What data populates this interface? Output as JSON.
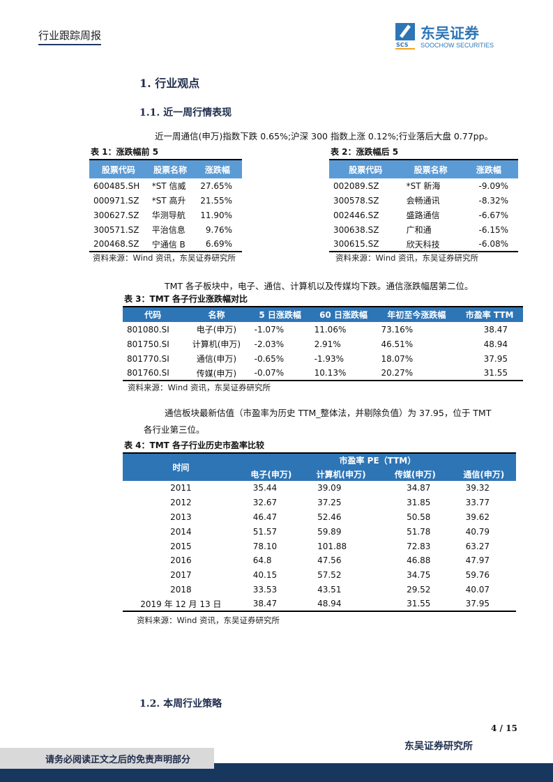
{
  "header": {
    "report_type": "行业跟踪周报",
    "logo": {
      "cn": "东吴证券",
      "en": "SOOCHOW SECURITIES",
      "mark": "SCS"
    }
  },
  "sections": {
    "s1": "1.   行业观点",
    "s11": "1.1.   近一周行情表现",
    "s12": "1.2.   本周行业策略"
  },
  "para1": "近一周通信(申万)指数下跌 0.65%;沪深 300 指数上涨 0.12%;行业落后大盘 0.77pp。",
  "para2": "TMT 各子板块中，电子、通信、计算机以及传媒均下跌。通信涨跌幅居第二位。",
  "para3a": "通信板块最新估值（市盈率为历史 TTM_整体法，并剔除负值）为 37.95，位于 TMT",
  "para3b": "各行业第三位。",
  "source": "资料来源：Wind 资讯，东吴证券研究所",
  "table1": {
    "caption": "表 1：涨跌幅前 5",
    "headers": [
      "股票代码",
      "股票名称",
      "涨跌幅"
    ],
    "rows": [
      [
        "600485.SH",
        "*ST 信威",
        "27.65%"
      ],
      [
        "000971.SZ",
        "*ST 高升",
        "21.55%"
      ],
      [
        "300627.SZ",
        "华测导航",
        "11.90%"
      ],
      [
        "300571.SZ",
        "平治信息",
        "9.76%"
      ],
      [
        "200468.SZ",
        "宁通信 B",
        "6.69%"
      ]
    ]
  },
  "table2": {
    "caption": "表 2：涨跌幅后 5",
    "headers": [
      "股票代码",
      "股票名称",
      "涨跌幅"
    ],
    "rows": [
      [
        "002089.SZ",
        "*ST 新海",
        "-9.09%"
      ],
      [
        "300578.SZ",
        "会畅通讯",
        "-8.32%"
      ],
      [
        "002446.SZ",
        "盛路通信",
        "-6.67%"
      ],
      [
        "300638.SZ",
        "广和通",
        "-6.15%"
      ],
      [
        "300615.SZ",
        "欣天科技",
        "-6.08%"
      ]
    ]
  },
  "table3": {
    "caption": "表 3：TMT 各子行业涨跌幅对比",
    "headers": [
      "代码",
      "名称",
      "5 日涨跌幅",
      "60 日涨跌幅",
      "年初至今涨跌幅",
      "市盈率 TTM"
    ],
    "rows": [
      [
        "801080.SI",
        "电子(申万)",
        "-1.07%",
        "11.06%",
        "73.16%",
        "38.47"
      ],
      [
        "801750.SI",
        "计算机(申万)",
        "-2.03%",
        "2.91%",
        "46.51%",
        "48.94"
      ],
      [
        "801770.SI",
        "通信(申万)",
        "-0.65%",
        "-1.93%",
        "18.07%",
        "37.95"
      ],
      [
        "801760.SI",
        "传媒(申万)",
        "-0.07%",
        "10.13%",
        "20.27%",
        "31.55"
      ]
    ]
  },
  "table4": {
    "caption": "表 4：TMT 各子行业历史市盈率比较",
    "time_header": "时间",
    "group_header": "市盈率 PE（TTM）",
    "headers": [
      "电子(申万)",
      "计算机(申万)",
      "传媒(申万)",
      "通信(申万)"
    ],
    "rows": [
      [
        "2011",
        "35.44",
        "39.09",
        "34.87",
        "39.32"
      ],
      [
        "2012",
        "32.67",
        "37.25",
        "31.85",
        "33.77"
      ],
      [
        "2013",
        "46.47",
        "52.46",
        "50.58",
        "39.62"
      ],
      [
        "2014",
        "51.57",
        "59.89",
        "51.78",
        "40.79"
      ],
      [
        "2015",
        "78.10",
        "101.88",
        "72.83",
        "63.27"
      ],
      [
        "2016",
        "64.8",
        "47.56",
        "46.88",
        "47.97"
      ],
      [
        "2017",
        "40.15",
        "57.52",
        "34.75",
        "59.76"
      ],
      [
        "2018",
        "33.53",
        "43.51",
        "29.52",
        "40.07"
      ],
      [
        "2019 年 12 月 13 日",
        "38.47",
        "48.94",
        "31.55",
        "37.95"
      ]
    ]
  },
  "footer": {
    "page": "4 / 15",
    "org": "东吴证券研究所",
    "disclaimer": "请务必阅读正文之后的免责声明部分"
  },
  "colors": {
    "header_light": "#5b9bd5",
    "header_dark": "#2e75b6",
    "navy": "#17375e"
  }
}
